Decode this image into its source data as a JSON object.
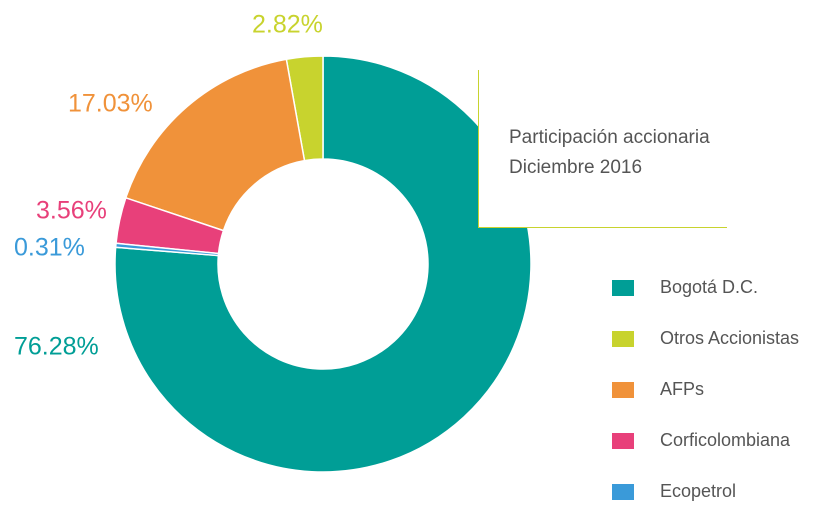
{
  "chart_data": {
    "type": "donut",
    "title": "Participación accionaria",
    "subtitle": "Diciembre 2016",
    "series": [
      {
        "name": "Bogotá D.C.",
        "color": "#009e96",
        "values": [
          76.28
        ],
        "value_labels": [
          "76.28%"
        ]
      },
      {
        "name": "Otros Accionistas",
        "color": "#c8d32e",
        "values": [
          2.82
        ],
        "value_labels": [
          "2.82%"
        ]
      },
      {
        "name": "AFPs",
        "color": "#f0923a",
        "values": [
          17.03
        ],
        "value_labels": [
          "17.03%"
        ]
      },
      {
        "name": "Corficolombiana",
        "color": "#e8407a",
        "values": [
          3.56
        ],
        "value_labels": [
          "3.56%"
        ]
      },
      {
        "name": "Ecopetrol",
        "color": "#3a9ad9",
        "values": [
          0.31
        ],
        "value_labels": [
          "0.31%"
        ]
      }
    ],
    "legend": "right"
  }
}
